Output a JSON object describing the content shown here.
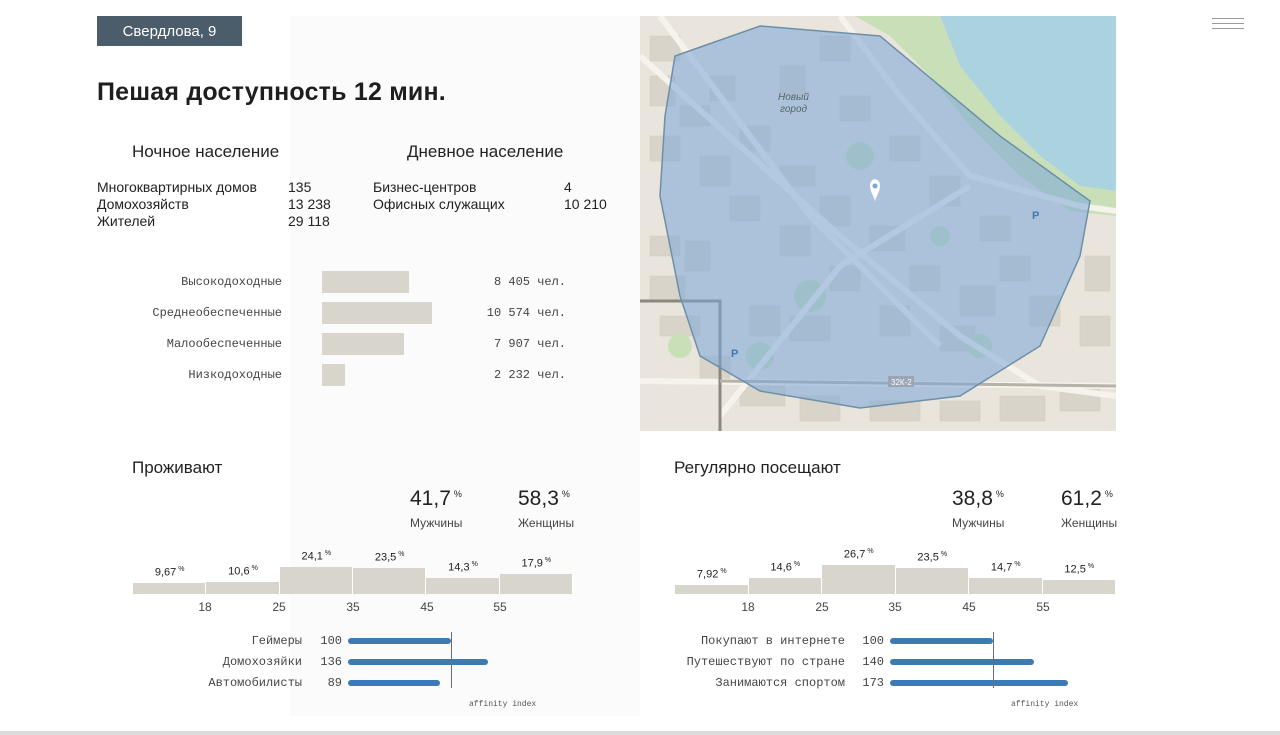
{
  "address_tag": "Свердлова, 9",
  "title": "Пешая доступность 12 мин.",
  "night": {
    "heading": "Ночное население",
    "rows": [
      {
        "label": "Многоквартирных домов",
        "value": "135"
      },
      {
        "label": "Домохозяйств",
        "value": "13 238"
      },
      {
        "label": "Жителей",
        "value": "29 118"
      }
    ]
  },
  "day": {
    "heading": "Дневное население",
    "rows": [
      {
        "label": "Бизнес-центров",
        "value": "4"
      },
      {
        "label": "Офисных служащих",
        "value": "10 210"
      }
    ]
  },
  "income": [
    {
      "label": "Высокодоходные",
      "value": "8 405 чел.",
      "count": 8405
    },
    {
      "label": "Среднеобеспеченные",
      "value": "10 574 чел.",
      "count": 10574
    },
    {
      "label": "Малообеспеченные",
      "value": "7 907 чел.",
      "count": 7907
    },
    {
      "label": "Низкодоходные",
      "value": "2 232 чел.",
      "count": 2232
    }
  ],
  "residents": {
    "heading": "Проживают",
    "men_value": "41,7",
    "men_label": "Мужчины",
    "women_value": "58,3",
    "women_label": "Женщины",
    "pct_sign": "%",
    "age_pct": [
      9.67,
      10.6,
      24.1,
      23.5,
      14.3,
      17.9
    ],
    "age_labels": [
      "9,67",
      "10,6",
      "24,1",
      "23,5",
      "14,3",
      "17,9"
    ],
    "ticks": [
      "18",
      "25",
      "35",
      "45",
      "55"
    ],
    "interests": [
      {
        "label": "Геймеры",
        "value": "100",
        "index": 100
      },
      {
        "label": "Домохозяйки",
        "value": "136",
        "index": 136
      },
      {
        "label": "Автомобилисты",
        "value": "89",
        "index": 89
      }
    ],
    "affinity_label": "affinity index"
  },
  "visitors": {
    "heading": "Регулярно посещают",
    "men_value": "38,8",
    "men_label": "Мужчины",
    "women_value": "61,2",
    "women_label": "Женщины",
    "pct_sign": "%",
    "age_pct": [
      7.92,
      14.6,
      26.7,
      23.5,
      14.7,
      12.5
    ],
    "age_labels": [
      "7,92",
      "14,6",
      "26,7",
      "23,5",
      "14,7",
      "12,5"
    ],
    "ticks": [
      "18",
      "25",
      "35",
      "45",
      "55"
    ],
    "interests": [
      {
        "label": "Покупают в интернете",
        "value": "100",
        "index": 100
      },
      {
        "label": "Путешествуют по стране",
        "value": "140",
        "index": 140
      },
      {
        "label": "Занимаются спортом",
        "value": "173",
        "index": 173
      }
    ],
    "affinity_label": "affinity index"
  },
  "map": {
    "district_label_1": "Новый",
    "district_label_2": "город",
    "road_label": "32К-2",
    "parking_symbol": "P",
    "colors": {
      "zone": "#7aa6d8",
      "water": "#aad3df",
      "green": "#c8dfb8",
      "block": "#d9d4ca"
    }
  }
}
